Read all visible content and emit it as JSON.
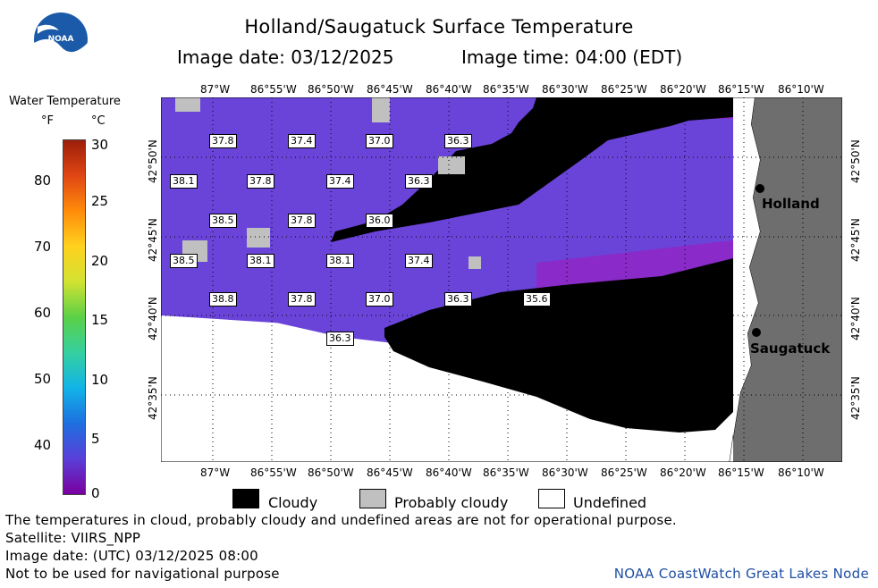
{
  "header": {
    "title": "Holland/Saugatuck Surface Temperature",
    "image_date": "Image date: 03/12/2025",
    "image_time": "Image time: 04:00 (EDT)"
  },
  "logo": {
    "text": "NOAA"
  },
  "colorbar": {
    "title": "Water Temperature",
    "unit_f": "°F",
    "unit_c": "°C",
    "f_ticks": [
      "80",
      "70",
      "60",
      "50",
      "40"
    ],
    "c_ticks": [
      "30",
      "25",
      "20",
      "15",
      "10",
      "5",
      "0"
    ],
    "range_c": [
      0,
      30
    ],
    "colors": [
      "#7a00a0",
      "#5a3fd8",
      "#1e6fe0",
      "#12b4e8",
      "#35d0a0",
      "#5ad046",
      "#d2e232",
      "#ffd21e",
      "#ff8c0a",
      "#e04614",
      "#9c1e0a"
    ]
  },
  "axes": {
    "top_lon": [
      "87°W",
      "86°55'W",
      "86°50'W",
      "86°45'W",
      "86°40'W",
      "86°35'W",
      "86°30'W",
      "86°25'W",
      "86°20'W",
      "86°15'W",
      "86°10'W"
    ],
    "bottom_lon": [
      "87°W",
      "86°55'W",
      "86°50'W",
      "86°45'W",
      "86°40'W",
      "86°35'W",
      "86°30'W",
      "86°25'W",
      "86°20'W",
      "86°15'W",
      "86°10'W"
    ],
    "left_lat": [
      "42°50'N",
      "42°45'N",
      "42°40'N",
      "42°35'N"
    ],
    "right_lat": [
      "42°50'N",
      "42°45'N",
      "42°40'N",
      "42°35'N"
    ]
  },
  "map": {
    "water_color": "#6a44d8",
    "cloud_color": "#000000",
    "probably_cloudy_color": "#c0c0c0",
    "land_color": "#6e6e6e",
    "temperature_labels": [
      "37.8",
      "37.4",
      "37.0",
      "36.3",
      "38.1",
      "37.8",
      "37.4",
      "36.3",
      "38.5",
      "37.8",
      "36.0",
      "38.5",
      "38.1",
      "38.1",
      "37.4",
      "38.8",
      "37.8",
      "37.0",
      "36.3",
      "35.6",
      "36.3"
    ],
    "cities": [
      "Holland",
      "Saugatuck"
    ]
  },
  "key": {
    "cloudy": "Cloudy",
    "probably_cloudy": "Probably cloudy",
    "undefined": "Undefined"
  },
  "footer": {
    "note": "The temperatures in cloud, probably cloudy and undefined areas are not for operational purpose.",
    "satellite": "Satellite: VIIRS_NPP",
    "utc_date": "Image date: (UTC) 03/12/2025  08:00",
    "nav_warning": "Not to be used for navigational purpose",
    "credit": "NOAA CoastWatch Great Lakes Node"
  }
}
